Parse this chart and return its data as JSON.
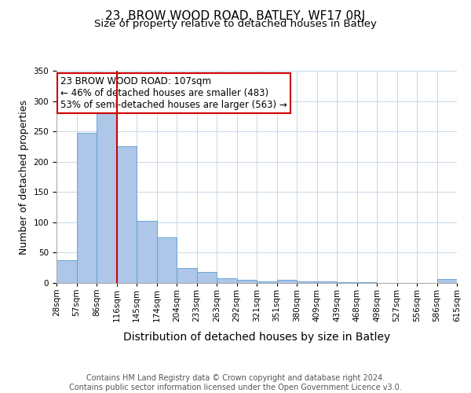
{
  "title": "23, BROW WOOD ROAD, BATLEY, WF17 0RJ",
  "subtitle": "Size of property relative to detached houses in Batley",
  "xlabel": "Distribution of detached houses by size in Batley",
  "ylabel": "Number of detached properties",
  "bin_labels": [
    "28sqm",
    "57sqm",
    "86sqm",
    "116sqm",
    "145sqm",
    "174sqm",
    "204sqm",
    "233sqm",
    "263sqm",
    "292sqm",
    "321sqm",
    "351sqm",
    "380sqm",
    "409sqm",
    "439sqm",
    "468sqm",
    "498sqm",
    "527sqm",
    "556sqm",
    "586sqm",
    "615sqm"
  ],
  "bar_heights": [
    38,
    248,
    290,
    225,
    103,
    75,
    25,
    18,
    8,
    5,
    3,
    5,
    2,
    2,
    1,
    1,
    0,
    0,
    0,
    6
  ],
  "bar_color": "#aec6e8",
  "bar_edgecolor": "#5a9fd4",
  "vline_color": "#cc0000",
  "annotation_text": "23 BROW WOOD ROAD: 107sqm\n← 46% of detached houses are smaller (483)\n53% of semi-detached houses are larger (563) →",
  "annotation_box_edgecolor": "#cc0000",
  "ylim": [
    0,
    350
  ],
  "yticks": [
    0,
    50,
    100,
    150,
    200,
    250,
    300,
    350
  ],
  "footer_text": "Contains HM Land Registry data © Crown copyright and database right 2024.\nContains public sector information licensed under the Open Government Licence v3.0.",
  "bg_color": "#ffffff",
  "grid_color": "#c8d8e8",
  "title_fontsize": 11,
  "subtitle_fontsize": 9.5,
  "ylabel_fontsize": 9,
  "xlabel_fontsize": 10,
  "tick_fontsize": 7.5,
  "annotation_fontsize": 8.5,
  "footer_fontsize": 7
}
